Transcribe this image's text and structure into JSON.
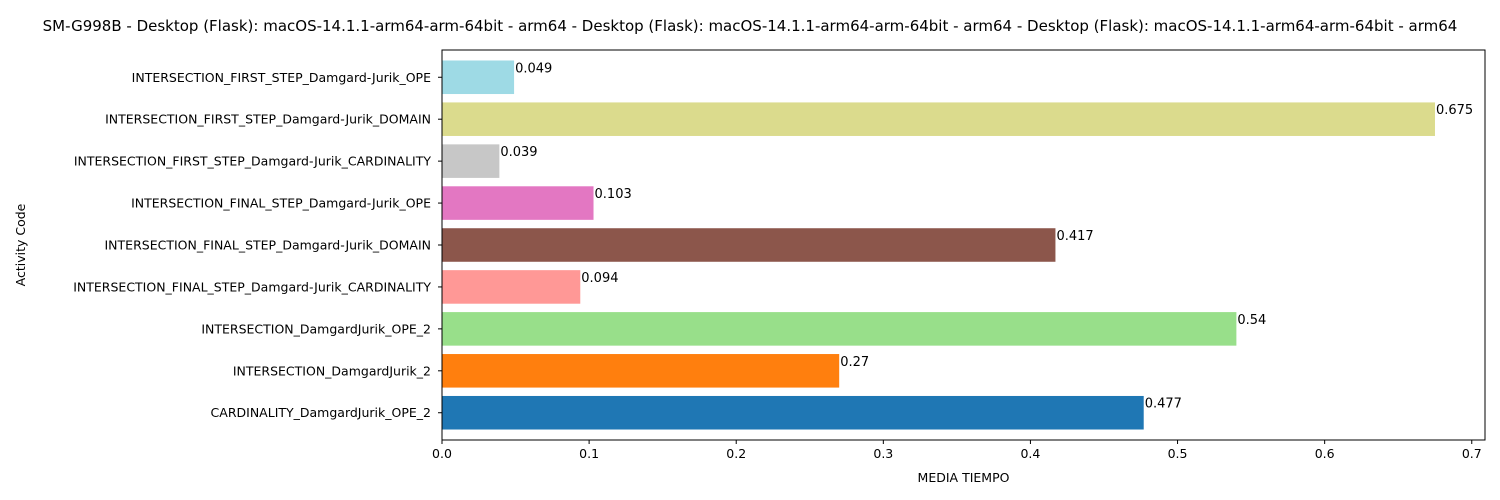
{
  "chart_data": {
    "type": "bar",
    "orientation": "horizontal",
    "title": "SM-G998B - Desktop (Flask): macOS-14.1.1-arm64-arm-64bit - arm64 - Desktop (Flask): macOS-14.1.1-arm64-arm-64bit - arm64 - Desktop (Flask): macOS-14.1.1-arm64-arm-64bit - arm64",
    "xlabel": "MEDIA TIEMPO",
    "ylabel": "Activity Code",
    "xlim": [
      0,
      0.709
    ],
    "xticks": [
      "0.0",
      "0.1",
      "0.2",
      "0.3",
      "0.4",
      "0.5",
      "0.6",
      "0.7"
    ],
    "grid": false,
    "categories": [
      "CARDINALITY_DamgardJurik_OPE_2",
      "INTERSECTION_DamgardJurik_2",
      "INTERSECTION_DamgardJurik_OPE_2",
      "INTERSECTION_FINAL_STEP_Damgard-Jurik_CARDINALITY",
      "INTERSECTION_FINAL_STEP_Damgard-Jurik_DOMAIN",
      "INTERSECTION_FINAL_STEP_Damgard-Jurik_OPE",
      "INTERSECTION_FIRST_STEP_Damgard-Jurik_CARDINALITY",
      "INTERSECTION_FIRST_STEP_Damgard-Jurik_DOMAIN",
      "INTERSECTION_FIRST_STEP_Damgard-Jurik_OPE"
    ],
    "values": [
      0.477,
      0.27,
      0.54,
      0.094,
      0.417,
      0.103,
      0.039,
      0.675,
      0.049
    ],
    "value_labels": [
      "0.477",
      "0.27",
      "0.54",
      "0.094",
      "0.417",
      "0.103",
      "0.039",
      "0.675",
      "0.049"
    ],
    "colors": [
      "#1f77b4",
      "#ff7f0e",
      "#98df8a",
      "#ff9896",
      "#8c564b",
      "#e377c2",
      "#c7c7c7",
      "#dbdb8d",
      "#9edae5"
    ]
  }
}
